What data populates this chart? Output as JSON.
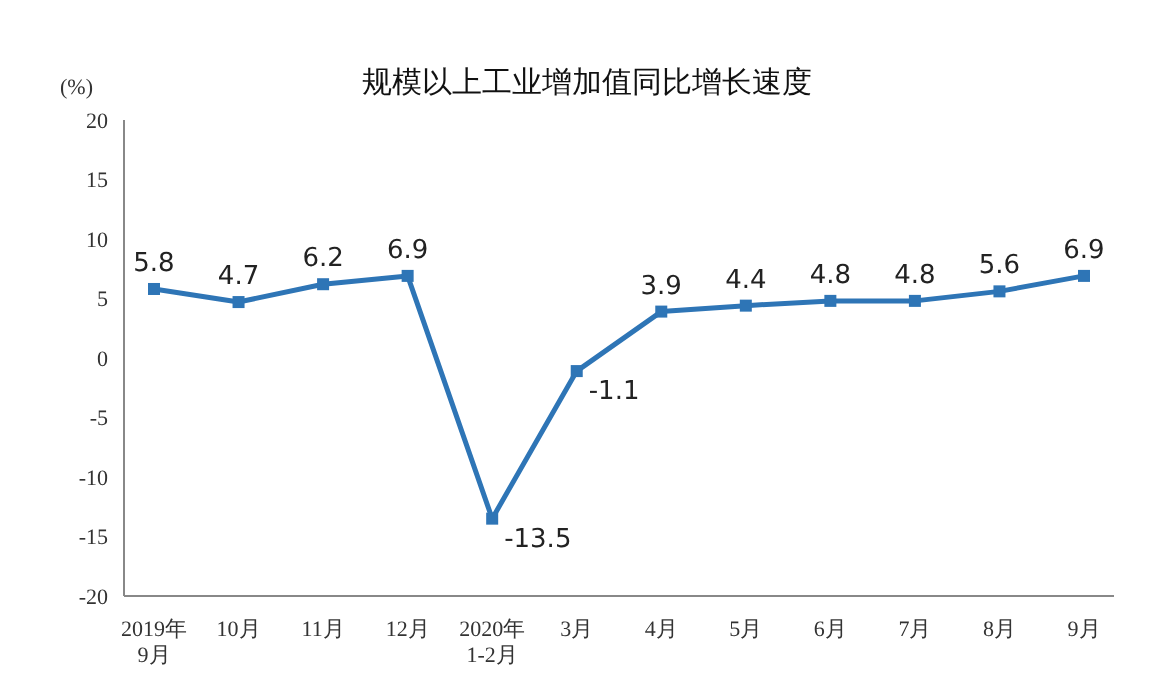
{
  "chart_data": {
    "type": "line",
    "title": "规模以上工业增加值同比增长速度",
    "ylabel": "(%)",
    "categories": [
      "2019年\n9月",
      "10月",
      "11月",
      "12月",
      "2020年\n1-2月",
      "3月",
      "4月",
      "5月",
      "6月",
      "7月",
      "8月",
      "9月"
    ],
    "series": [
      {
        "color": "#2e75b6",
        "values": [
          5.8,
          4.7,
          6.2,
          6.9,
          -13.5,
          -1.1,
          3.9,
          4.4,
          4.8,
          4.8,
          5.6,
          6.9
        ]
      }
    ],
    "ylim": [
      -20,
      20
    ],
    "yticks": [
      -20,
      -15,
      -10,
      -5,
      0,
      5,
      10,
      15,
      20
    ],
    "grid": false,
    "marker": "square",
    "line_style": "solid",
    "data_labels": true
  }
}
